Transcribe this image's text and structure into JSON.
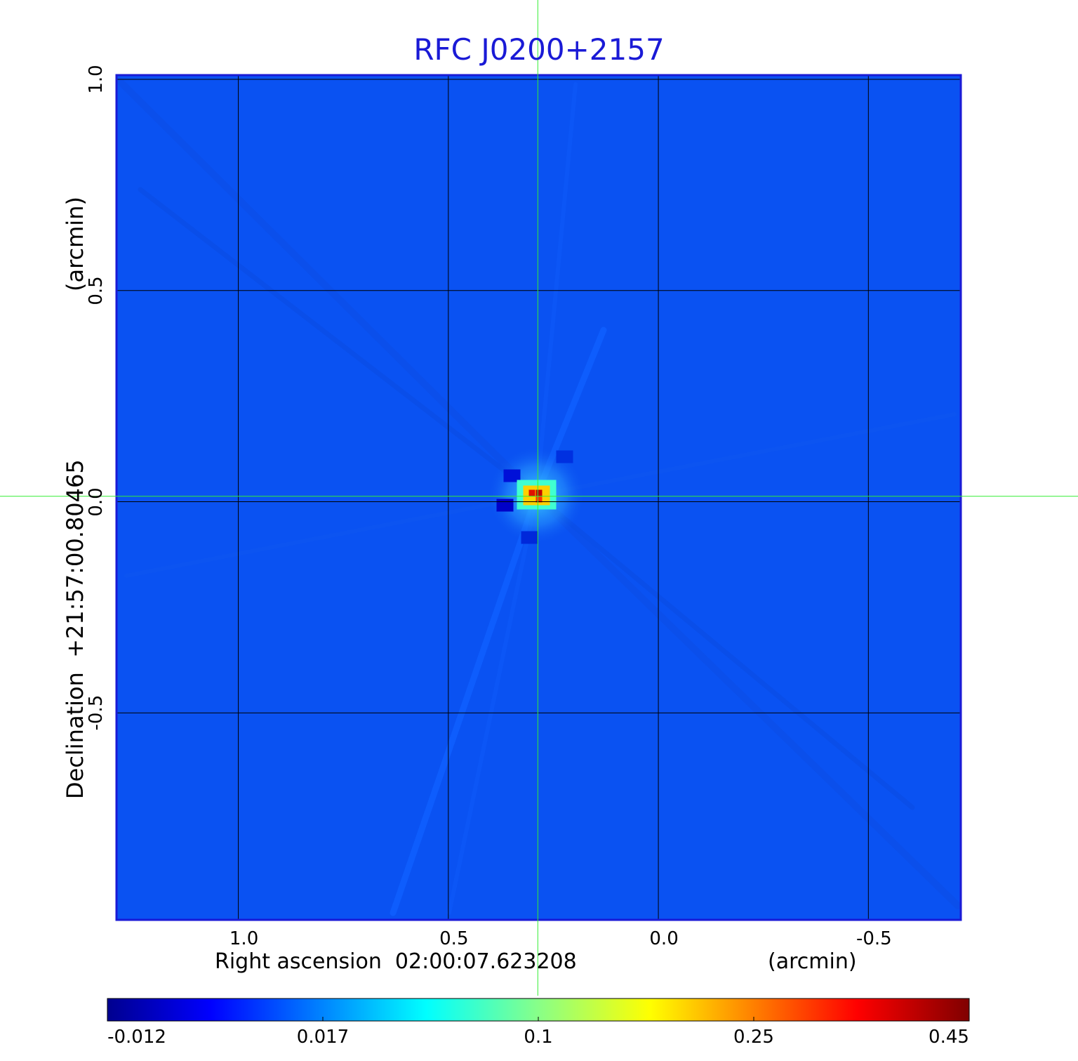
{
  "chart_data": {
    "type": "heatmap",
    "title": "RFC J0200+2157",
    "xlabel": "Right ascension  02:00:07.623208",
    "xunit": "(arcmin)",
    "ylabel": "Declination  +21:57:00.80465",
    "yunit": "(arcmin)",
    "x_ticks": [
      "1.0",
      "0.5",
      "0.0",
      "-0.5"
    ],
    "y_ticks": [
      "1.0",
      "0.5",
      "0.0",
      "-0.5"
    ],
    "x_tick_values": [
      1.0,
      0.5,
      0.0,
      -0.5
    ],
    "y_tick_values": [
      1.0,
      0.5,
      0.0,
      -0.5
    ],
    "xlim": [
      1.29,
      -0.72
    ],
    "ylim": [
      -0.99,
      1.01
    ],
    "grid": true,
    "crosshair": [
      0.287,
      0.013
    ],
    "colormap": "jet",
    "colorbar_ticks": [
      "-0.012",
      "0.017",
      "0.1",
      "0.25",
      "0.45"
    ],
    "colorbar_range": [
      -0.012,
      0.45
    ],
    "source_peak": {
      "x": 0.29,
      "y": 0.015,
      "value": 0.45
    }
  },
  "colors": {
    "title": "#1a1ad6",
    "background_map": "#0a52f2",
    "crosshair": "#33ee33",
    "grid": "#000000"
  }
}
